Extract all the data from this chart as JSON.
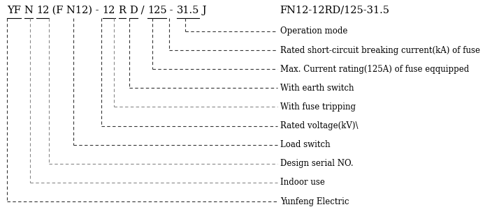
{
  "segments": [
    {
      "text": "YF",
      "underline": true
    },
    {
      "text": " ",
      "underline": false
    },
    {
      "text": "N",
      "underline": true
    },
    {
      "text": " ",
      "underline": false
    },
    {
      "text": "12",
      "underline": true
    },
    {
      "text": " (F N12) - ",
      "underline": false
    },
    {
      "text": "12",
      "underline": true
    },
    {
      "text": " ",
      "underline": false
    },
    {
      "text": "R",
      "underline": true
    },
    {
      "text": " ",
      "underline": false
    },
    {
      "text": "D",
      "underline": true
    },
    {
      "text": " / ",
      "underline": false
    },
    {
      "text": "125",
      "underline": true
    },
    {
      "text": " - ",
      "underline": false
    },
    {
      "text": "31.5",
      "underline": true
    },
    {
      "text": " J",
      "underline": false
    }
  ],
  "model_label": "FN12-12RD/125-31.5",
  "labels": [
    "Operation mode",
    "Rated short-circuit breaking current(kA) of fuse",
    "Max. Current rating(125A) of fuse eqquipped",
    "With earth switch",
    "With fuse tripping",
    "Rated voltage(kV)\\",
    "Load switch",
    "Design serial NO.",
    "Indoor use",
    "Yunfeng Electric"
  ],
  "bg_color": "#ffffff",
  "text_color": "#000000",
  "line_color_dark": "#333333",
  "line_color_light": "#888888",
  "title_fontsize": 10.5,
  "label_fontsize": 8.5,
  "model_fontsize": 10.5
}
